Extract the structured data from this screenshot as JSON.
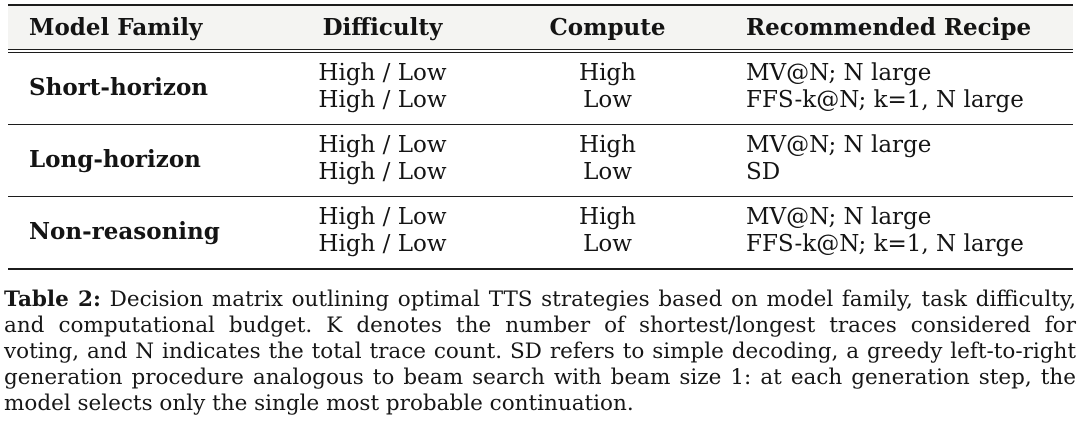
{
  "table": {
    "headers": {
      "model_family": "Model Family",
      "difficulty": "Difficulty",
      "compute": "Compute",
      "recommended_recipe": "Recommended Recipe"
    },
    "groups": [
      {
        "family": "Short-horizon",
        "rows": [
          {
            "difficulty": "High / Low",
            "compute": "High",
            "recipe": "MV@N; N large"
          },
          {
            "difficulty": "High / Low",
            "compute": "Low",
            "recipe": "FFS-k@N; k=1, N large"
          }
        ]
      },
      {
        "family": "Long-horizon",
        "rows": [
          {
            "difficulty": "High / Low",
            "compute": "High",
            "recipe": "MV@N; N large"
          },
          {
            "difficulty": "High / Low",
            "compute": "Low",
            "recipe": "SD"
          }
        ]
      },
      {
        "family": "Non-reasoning",
        "rows": [
          {
            "difficulty": "High / Low",
            "compute": "High",
            "recipe": "MV@N; N large"
          },
          {
            "difficulty": "High / Low",
            "compute": "Low",
            "recipe": "FFS-k@N; k=1, N large"
          }
        ]
      }
    ]
  },
  "caption": {
    "label": "Table 2:",
    "text": "Decision matrix outlining optimal TTS strategies based on model family, task difficulty, and computational budget. K denotes the number of shortest/longest traces considered for voting, and N indicates the total trace count. SD refers to simple decoding, a greedy left-to-right generation procedure analogous to beam search with beam size 1: at each generation step, the model selects only the single most probable continuation."
  },
  "colors": {
    "rule": "#1c1c1c",
    "header_background": "#f4f4f2",
    "text": "#141414"
  }
}
